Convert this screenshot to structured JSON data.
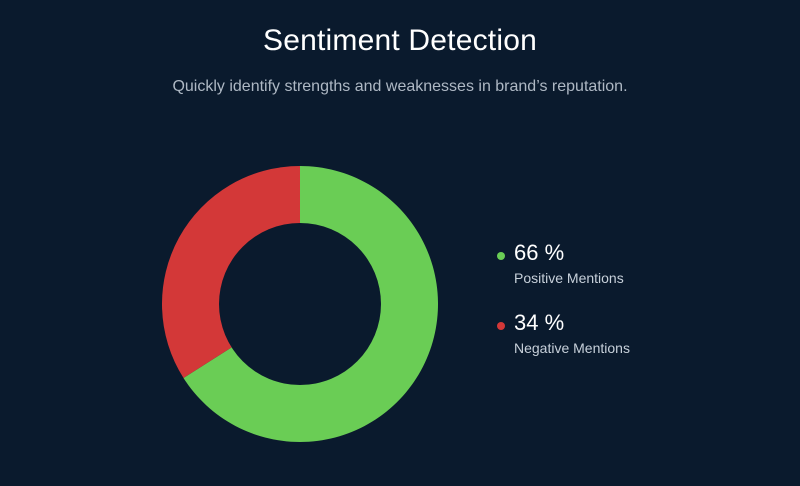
{
  "header": {
    "title": "Sentiment Detection",
    "subtitle": "Quickly identify strengths and weaknesses in brand’s reputation."
  },
  "chart_data": {
    "type": "pie",
    "donut": true,
    "title": "Sentiment Detection",
    "subtitle": "Quickly identify strengths and weaknesses in brand’s reputation.",
    "slices": [
      {
        "label": "Positive Mentions",
        "value": 66,
        "display": "66 %",
        "color": "#6acd55"
      },
      {
        "label": "Negative Mentions",
        "value": 34,
        "display": "34 %",
        "color": "#d33838"
      }
    ],
    "legend_position": "right"
  },
  "theme": {
    "background": "#0a1a2d"
  }
}
